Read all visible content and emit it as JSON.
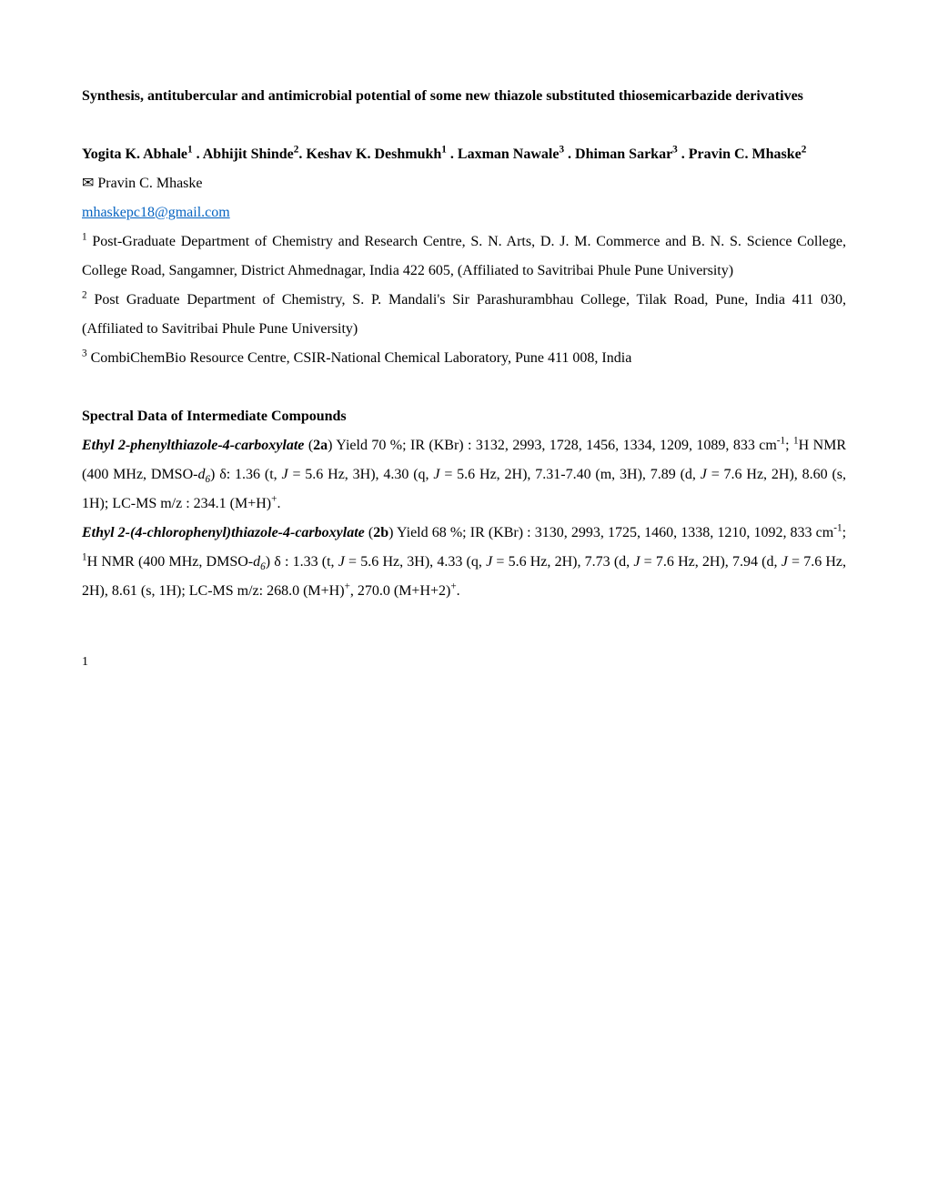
{
  "title": "Synthesis, antitubercular and antimicrobial potential of some new thiazole substituted thiosemicarbazide derivatives",
  "authors": {
    "a1_name": "Yogita K. Abhale",
    "a1_sup": "1",
    "a2_name": "Abhijit Shinde",
    "a2_sup": "2",
    "a3_name": "Keshav K. Deshmukh",
    "a3_sup": "1",
    "a4_name": "Laxman Nawale",
    "a4_sup": "3",
    "a5_name": "Dhiman Sarkar",
    "a5_sup": "3",
    "a6_name": "Pravin C. Mhaske",
    "a6_sup": "2"
  },
  "corresponding_symbol": "✉",
  "corresponding_name": "Pravin C. Mhaske",
  "email": "mhaskepc18@gmail.com",
  "affiliations": {
    "aff1_sup": "1",
    "aff1_text": "Post-Graduate Department of Chemistry and Research Centre, S. N. Arts, D. J. M. Commerce and B. N. S. Science College, College Road, Sangamner, District Ahmednagar, India 422 605, (Affiliated to Savitribai Phule Pune University)",
    "aff2_sup": "2",
    "aff2_text": "Post Graduate Department of Chemistry, S. P. Mandali's Sir Parashurambhau College, Tilak Road, Pune, India 411 030, (Affiliated to Savitribai Phule Pune University)",
    "aff3_sup": "3",
    "aff3_text": "CombiChemBio Resource Centre, CSIR-National Chemical Laboratory, Pune 411 008, India"
  },
  "section_heading": "Spectral Data of Intermediate Compounds",
  "compound_2a": {
    "name": "Ethyl 2-phenylthiazole-4-carboxylate",
    "id": "2a",
    "pre_yield": " (",
    "post_id": ") Yield 70 %; IR (KBr) : 3132, 2993, 1728, 1456, 1334, 1209, 1089, 833 cm",
    "sup_neg1": "-1",
    "semicolon": "; ",
    "sup_1h": "1",
    "nmr_text": "H NMR (400 MHz, DMSO-",
    "d": "d",
    "sub_6": "6",
    "delta": ") δ: 1.36 (t, ",
    "j1": "J",
    "j1_text": " = 5.6 Hz, 3H), 4.30 (q, ",
    "j2": "J",
    "j2_text": " = 5.6 Hz, 2H), 7.31-7.40 (m, 3H), 7.89 (d, ",
    "j3": "J",
    "j3_text": " = 7.6 Hz, 2H), 8.60 (s, 1H); LC-MS m/z : 234.1 (M+H)",
    "sup_plus": "+",
    "period": "."
  },
  "compound_2b": {
    "name": "Ethyl 2-(4-chlorophenyl)thiazole-4-carboxylate",
    "id": "2b",
    "pre_yield": " (",
    "post_id": ") Yield 68 %; IR (KBr) : 3130, 2993, 1725, 1460,  1338, 1210, 1092, 833 cm",
    "sup_neg1": "-1",
    "semicolon": "; ",
    "sup_1h": "1",
    "nmr_text": "H NMR (400 MHz, DMSO-",
    "d": "d",
    "sub_6": "6",
    "delta": ") δ : 1.33 (t, ",
    "j1": "J",
    "j1_text": " = 5.6 Hz, 3H), 4.33 (q, ",
    "j2": "J",
    "j2_text": " = 5.6 Hz, 2H), 7.73 (d, ",
    "j3": "J",
    "j3_text": " = 7.6 Hz, 2H), 7.94 (d, ",
    "j4": "J",
    "j4_text": " = 7.6 Hz, 2H), 8.61 (s, 1H); LC-MS m/z: 268.0 (M+H)",
    "sup_plus": "+",
    "comma": ", 270.0 (M+H+2)",
    "sup_plus2": "+",
    "period": "."
  },
  "page_number": "1"
}
